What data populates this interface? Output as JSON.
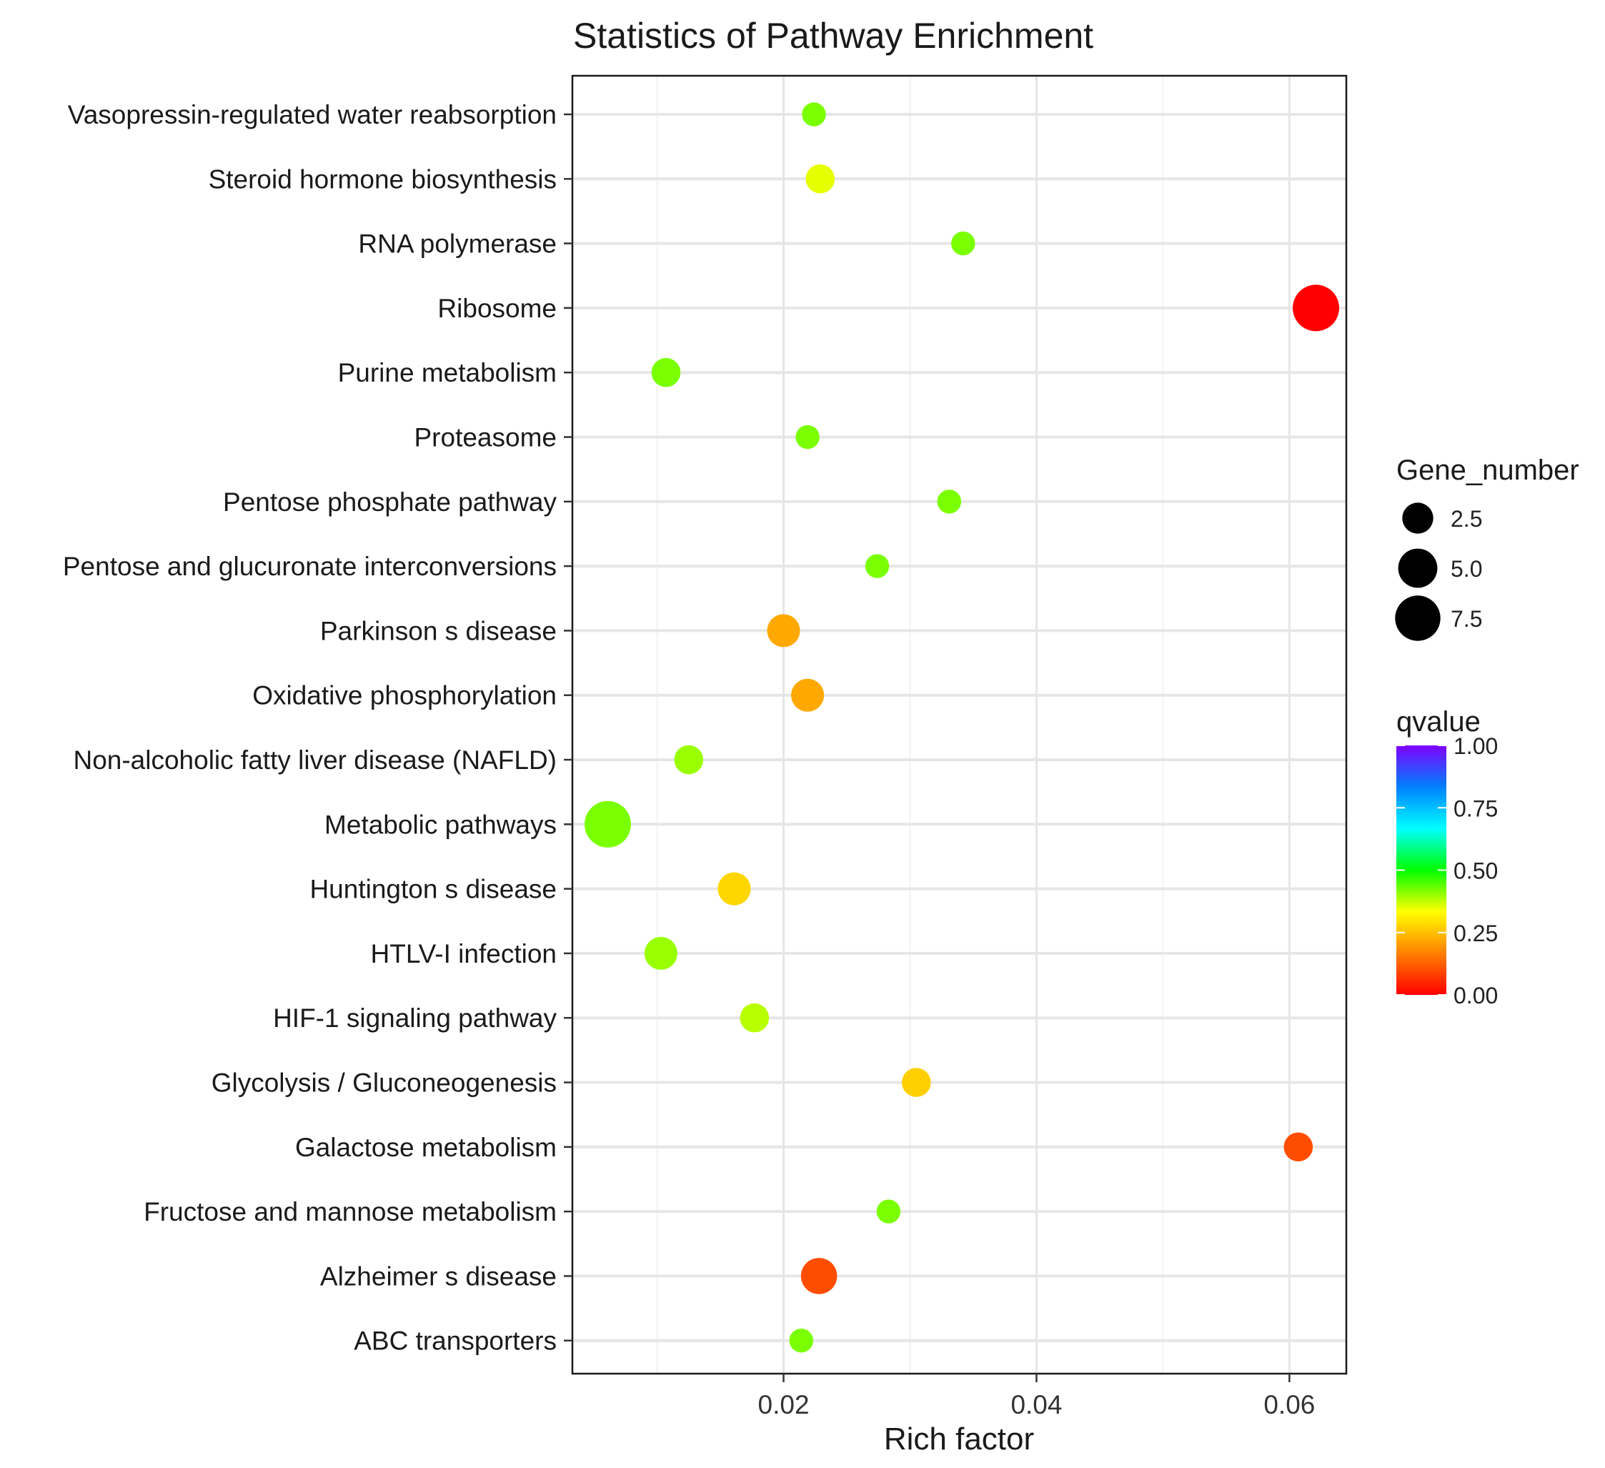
{
  "chart_data": {
    "type": "scatter",
    "title": "Statistics of Pathway Enrichment",
    "xlabel": "Rich factor",
    "ylabel": "",
    "xlim": [
      0.0033,
      0.0645
    ],
    "xticks": [
      0.02,
      0.04,
      0.06
    ],
    "xtick_labels": [
      "0.02",
      "0.04",
      "0.06"
    ],
    "grid": true,
    "categories": [
      "Vasopressin-regulated water reabsorption",
      "Steroid hormone biosynthesis",
      "RNA polymerase",
      "Ribosome",
      "Purine metabolism",
      "Proteasome",
      "Pentose phosphate pathway",
      "Pentose and glucuronate interconversions",
      "Parkinson s disease",
      "Oxidative phosphorylation",
      "Non-alcoholic fatty liver disease (NAFLD)",
      "Metabolic pathways",
      "Huntington s disease",
      "HTLV-I infection",
      "HIF-1 signaling pathway",
      "Glycolysis / Gluconeogenesis",
      "Galactose metabolism",
      "Fructose and mannose metabolism",
      "Alzheimer s disease",
      "ABC transporters"
    ],
    "points": [
      {
        "term": "Vasopressin-regulated water reabsorption",
        "rich_factor": 0.0224,
        "gene_number": 1,
        "qvalue": 0.42
      },
      {
        "term": "Steroid hormone biosynthesis",
        "rich_factor": 0.0229,
        "gene_number": 2,
        "qvalue": 0.35
      },
      {
        "term": "RNA polymerase",
        "rich_factor": 0.0342,
        "gene_number": 1,
        "qvalue": 0.42
      },
      {
        "term": "Ribosome",
        "rich_factor": 0.0621,
        "gene_number": 8,
        "qvalue": 0.0
      },
      {
        "term": "Purine metabolism",
        "rich_factor": 0.0107,
        "gene_number": 2,
        "qvalue": 0.42
      },
      {
        "term": "Proteasome",
        "rich_factor": 0.0219,
        "gene_number": 1,
        "qvalue": 0.42
      },
      {
        "term": "Pentose phosphate pathway",
        "rich_factor": 0.0331,
        "gene_number": 1,
        "qvalue": 0.42
      },
      {
        "term": "Pentose and glucuronate interconversions",
        "rich_factor": 0.0274,
        "gene_number": 1,
        "qvalue": 0.42
      },
      {
        "term": "Parkinson s disease",
        "rich_factor": 0.02,
        "gene_number": 3,
        "qvalue": 0.22
      },
      {
        "term": "Oxidative phosphorylation",
        "rich_factor": 0.0219,
        "gene_number": 3,
        "qvalue": 0.22
      },
      {
        "term": "Non-alcoholic fatty liver disease (NAFLD)",
        "rich_factor": 0.0125,
        "gene_number": 2,
        "qvalue": 0.4
      },
      {
        "term": "Metabolic pathways",
        "rich_factor": 0.0061,
        "gene_number": 8,
        "qvalue": 0.42
      },
      {
        "term": "Huntington s disease",
        "rich_factor": 0.0161,
        "gene_number": 3,
        "qvalue": 0.28
      },
      {
        "term": "HTLV-I infection",
        "rich_factor": 0.0103,
        "gene_number": 3,
        "qvalue": 0.4
      },
      {
        "term": "HIF-1 signaling pathway",
        "rich_factor": 0.0177,
        "gene_number": 2,
        "qvalue": 0.38
      },
      {
        "term": "Glycolysis / Gluconeogenesis",
        "rich_factor": 0.0305,
        "gene_number": 2,
        "qvalue": 0.27
      },
      {
        "term": "Galactose metabolism",
        "rich_factor": 0.0607,
        "gene_number": 2,
        "qvalue": 0.1
      },
      {
        "term": "Fructose and mannose metabolism",
        "rich_factor": 0.0283,
        "gene_number": 1,
        "qvalue": 0.42
      },
      {
        "term": "Alzheimer s disease",
        "rich_factor": 0.0228,
        "gene_number": 4,
        "qvalue": 0.1
      },
      {
        "term": "ABC transporters",
        "rich_factor": 0.0214,
        "gene_number": 1,
        "qvalue": 0.42
      }
    ],
    "size_legend": {
      "title": "Gene_number",
      "values": [
        2.5,
        5.0,
        7.5
      ],
      "labels": [
        "2.5",
        "5.0",
        "7.5"
      ],
      "color": "#000000"
    },
    "color_legend": {
      "title": "qvalue",
      "range": [
        0.0,
        1.0
      ],
      "ticks": [
        0.0,
        0.25,
        0.5,
        0.75,
        1.0
      ],
      "tick_labels": [
        "0.00",
        "0.25",
        "0.50",
        "0.75",
        "1.00"
      ],
      "gradient_stops": [
        "#ff0000",
        "#ff8000",
        "#ffff00",
        "#00ff00",
        "#00ffff",
        "#0080ff",
        "#8000ff"
      ]
    },
    "colors": {
      "panel_border": "#1a1a1a",
      "grid_major": "#e6e6e6",
      "grid_minor": "#f2f2f2",
      "tick": "#333333"
    }
  }
}
